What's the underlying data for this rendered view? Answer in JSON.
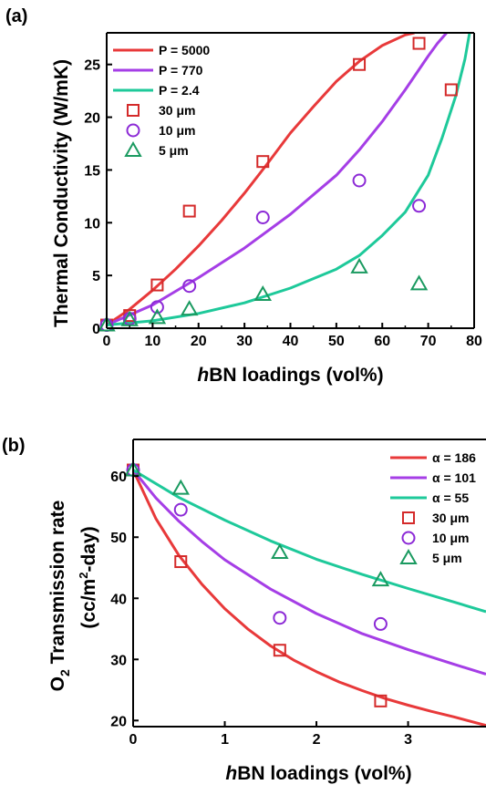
{
  "colors": {
    "red": "#e8393a",
    "purple": "#a53ee6",
    "green": "#1ec99a",
    "red_marker": "#d42a2a",
    "purple_marker": "#8c2ad6",
    "green_marker": "#1a9a60"
  },
  "chart_data": [
    {
      "id": "a",
      "type": "scatter",
      "panel_label": "(a)",
      "xlabel": "hBN loadings (vol%)",
      "xlabel_italic": "h",
      "xlabel_rest": "BN loadings (vol%)",
      "ylabel": "Thermal Conductivity (W/mK)",
      "xlim": [
        0,
        80
      ],
      "ylim": [
        0,
        28
      ],
      "xticks": [
        "0",
        "10",
        "20",
        "30",
        "40",
        "50",
        "60",
        "70",
        "80"
      ],
      "yticks": [
        "0",
        "5",
        "10",
        "15",
        "20",
        "25"
      ],
      "legend_position": "top-left",
      "lines": [
        {
          "name": "P = 5000",
          "color": "red",
          "x": [
            0,
            5,
            10,
            15,
            20,
            25,
            30,
            35,
            40,
            45,
            50,
            55,
            60,
            65,
            67
          ],
          "y": [
            0.3,
            1.8,
            3.6,
            5.6,
            7.8,
            10.2,
            12.8,
            15.6,
            18.5,
            21.0,
            23.4,
            25.3,
            26.8,
            27.8,
            28.0
          ]
        },
        {
          "name": "P = 770",
          "color": "purple",
          "x": [
            0,
            10,
            20,
            30,
            40,
            50,
            55,
            60,
            65,
            70,
            72,
            74
          ],
          "y": [
            0.3,
            2.2,
            4.8,
            7.6,
            10.8,
            14.5,
            16.9,
            19.6,
            22.6,
            25.8,
            27.0,
            28.0
          ]
        },
        {
          "name": "P = 2.4",
          "color": "green",
          "x": [
            0,
            10,
            20,
            30,
            40,
            50,
            55,
            60,
            65,
            70,
            73,
            76,
            78,
            79
          ],
          "y": [
            0.3,
            0.7,
            1.4,
            2.4,
            3.8,
            5.6,
            6.9,
            8.8,
            11.0,
            14.5,
            18.0,
            22.0,
            25.5,
            28.0
          ]
        }
      ],
      "series": [
        {
          "name": "30 μm",
          "marker": "square",
          "color": "red_marker",
          "points": [
            [
              0,
              0.3
            ],
            [
              5,
              1.2
            ],
            [
              11,
              4.1
            ],
            [
              18,
              11.1
            ],
            [
              34,
              15.8
            ],
            [
              55,
              25.0
            ],
            [
              68,
              27.0
            ],
            [
              75,
              22.6
            ]
          ]
        },
        {
          "name": "10 μm",
          "marker": "circle",
          "color": "purple_marker",
          "points": [
            [
              0,
              0.3
            ],
            [
              5,
              0.9
            ],
            [
              11,
              2.0
            ],
            [
              18,
              4.0
            ],
            [
              34,
              10.5
            ],
            [
              55,
              14.0
            ],
            [
              68,
              11.6
            ]
          ]
        },
        {
          "name": "5 μm",
          "marker": "triangle",
          "color": "green_marker",
          "points": [
            [
              0,
              0.3
            ],
            [
              5,
              0.8
            ],
            [
              11,
              1.0
            ],
            [
              18,
              1.8
            ],
            [
              34,
              3.2
            ],
            [
              55,
              5.8
            ],
            [
              68,
              4.2
            ]
          ]
        }
      ]
    },
    {
      "id": "b",
      "type": "scatter",
      "panel_label": "(b)",
      "xlabel": "hBN loadings (vol%)",
      "xlabel_italic": "h",
      "xlabel_rest": "BN loadings (vol%)",
      "ylabel_line1": "O2 Transmission rate",
      "ylabel_line2": "(cc/m2-day)",
      "xlim": [
        0,
        3.85
      ],
      "ylim": [
        19,
        66
      ],
      "xticks": [
        "0",
        "1",
        "2",
        "3"
      ],
      "yticks": [
        "20",
        "30",
        "40",
        "50",
        "60"
      ],
      "legend_position": "top-right",
      "lines": [
        {
          "name": "α = 186",
          "color": "red",
          "x": [
            0,
            0.25,
            0.5,
            0.75,
            1.0,
            1.25,
            1.5,
            1.75,
            2.0,
            2.25,
            2.5,
            2.75,
            3.0,
            3.25,
            3.5,
            3.85
          ],
          "y": [
            61,
            53.0,
            47.0,
            42.3,
            38.3,
            35.0,
            32.2,
            29.9,
            28.0,
            26.3,
            24.9,
            23.6,
            22.5,
            21.5,
            20.6,
            19.2
          ]
        },
        {
          "name": "α = 101",
          "color": "purple",
          "x": [
            0,
            0.25,
            0.5,
            0.75,
            1.0,
            1.5,
            2.0,
            2.5,
            3.0,
            3.5,
            3.85
          ],
          "y": [
            61,
            56.4,
            52.6,
            49.3,
            46.3,
            41.5,
            37.5,
            34.2,
            31.6,
            29.2,
            27.6
          ]
        },
        {
          "name": "α =  55",
          "color": "green",
          "x": [
            0,
            0.5,
            1.0,
            1.5,
            2.0,
            2.5,
            3.0,
            3.5,
            3.85
          ],
          "y": [
            61,
            56.5,
            52.8,
            49.4,
            46.4,
            43.9,
            41.6,
            39.4,
            37.8
          ]
        }
      ],
      "series": [
        {
          "name": "30 μm",
          "marker": "square",
          "color": "red_marker",
          "points": [
            [
              0,
              61
            ],
            [
              0.52,
              46.0
            ],
            [
              1.6,
              31.5
            ],
            [
              2.7,
              23.2
            ]
          ]
        },
        {
          "name": "10 μm",
          "marker": "circle",
          "color": "purple_marker",
          "points": [
            [
              0,
              61
            ],
            [
              0.52,
              54.5
            ],
            [
              1.6,
              36.8
            ],
            [
              2.7,
              35.8
            ]
          ]
        },
        {
          "name": "5 μm",
          "marker": "triangle",
          "color": "green_marker",
          "points": [
            [
              0,
              61
            ],
            [
              0.52,
              58.0
            ],
            [
              1.6,
              47.5
            ],
            [
              2.7,
              43.0
            ]
          ]
        }
      ]
    }
  ]
}
